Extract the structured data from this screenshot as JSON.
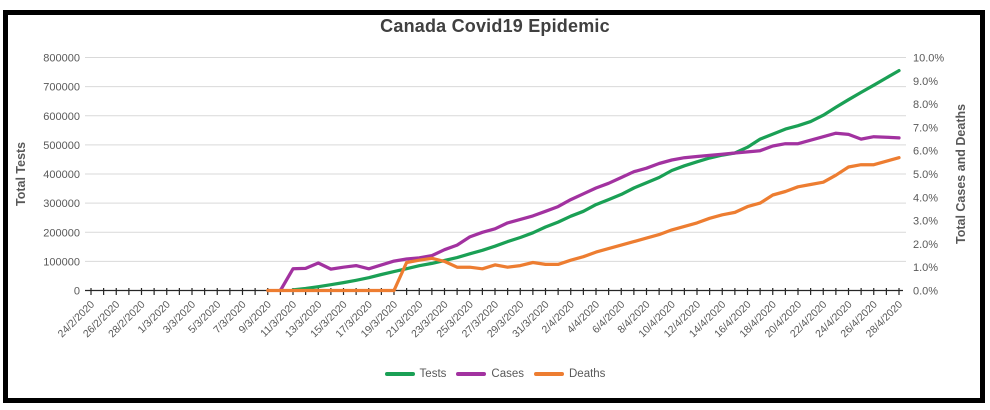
{
  "title": "Canada Covid19 Epidemic",
  "colors": {
    "tests_green": "#1AA055",
    "cases_purple": "#A232A0",
    "deaths_orange": "#ED7D31",
    "gridline": "#D9D9D9",
    "axis_line": "#262626",
    "tick_label": "#595959",
    "title_text": "#404040",
    "frame_border": "#000000"
  },
  "chart_data": {
    "type": "line",
    "title": "Canada Covid19 Epidemic",
    "grid": "horizontal",
    "legend_position": "bottom",
    "x_label_every": 2,
    "dates": [
      "24/2/2020",
      "25/2/2020",
      "26/2/2020",
      "27/2/2020",
      "28/2/2020",
      "29/2/2020",
      "1/3/2020",
      "2/3/2020",
      "3/3/2020",
      "4/3/2020",
      "5/3/2020",
      "6/3/2020",
      "7/3/2020",
      "8/3/2020",
      "9/3/2020",
      "10/3/2020",
      "11/3/2020",
      "12/3/2020",
      "13/3/2020",
      "14/3/2020",
      "15/3/2020",
      "16/3/2020",
      "17/3/2020",
      "18/3/2020",
      "19/3/2020",
      "20/3/2020",
      "21/3/2020",
      "22/3/2020",
      "23/3/2020",
      "24/3/2020",
      "25/3/2020",
      "26/3/2020",
      "27/3/2020",
      "28/3/2020",
      "29/3/2020",
      "30/3/2020",
      "31/3/2020",
      "1/4/2020",
      "2/4/2020",
      "3/4/2020",
      "4/4/2020",
      "5/4/2020",
      "6/4/2020",
      "7/4/2020",
      "8/4/2020",
      "9/4/2020",
      "10/4/2020",
      "11/4/2020",
      "12/4/2020",
      "13/4/2020",
      "14/4/2020",
      "15/4/2020",
      "16/4/2020",
      "17/4/2020",
      "18/4/2020",
      "19/4/2020",
      "20/4/2020",
      "21/4/2020",
      "22/4/2020",
      "23/4/2020",
      "24/4/2020",
      "25/4/2020",
      "26/4/2020",
      "27/4/2020",
      "28/4/2020"
    ],
    "left_axis": {
      "title": "Total Tests",
      "min": 0,
      "max": 800000,
      "tick_step": 100000,
      "tick_labels": [
        "0",
        "100000",
        "200000",
        "300000",
        "400000",
        "500000",
        "600000",
        "700000",
        "800000"
      ]
    },
    "right_axis": {
      "title": "Total Cases and Deaths",
      "min": 0,
      "max": 10,
      "tick_step": 1,
      "tick_labels": [
        "0.0%",
        "1.0%",
        "2.0%",
        "3.0%",
        "4.0%",
        "5.0%",
        "6.0%",
        "7.0%",
        "8.0%",
        "9.0%",
        "10.0%"
      ]
    },
    "series": [
      {
        "name": "Tests",
        "axis": "left",
        "color": "#1AA055",
        "values": [
          null,
          null,
          null,
          null,
          null,
          null,
          null,
          null,
          null,
          null,
          null,
          null,
          null,
          null,
          null,
          null,
          2000,
          7000,
          13000,
          20000,
          27000,
          35000,
          44000,
          55000,
          65000,
          75000,
          85000,
          93000,
          103000,
          113000,
          126000,
          138000,
          152000,
          168000,
          182000,
          198000,
          218000,
          235000,
          255000,
          272000,
          295000,
          312000,
          330000,
          352000,
          370000,
          388000,
          412000,
          428000,
          442000,
          455000,
          465000,
          472000,
          492000,
          520000,
          537000,
          554000,
          566000,
          580000,
          602000,
          629000,
          655000,
          680000,
          705000,
          730000,
          755000
        ]
      },
      {
        "name": "Cases",
        "axis": "right",
        "color": "#A232A0",
        "values": [
          null,
          null,
          null,
          null,
          null,
          null,
          null,
          null,
          null,
          null,
          null,
          null,
          null,
          null,
          null,
          0,
          0.93,
          0.95,
          1.18,
          0.92,
          1.0,
          1.07,
          0.93,
          1.1,
          1.26,
          1.35,
          1.4,
          1.5,
          1.75,
          1.95,
          2.3,
          2.5,
          2.65,
          2.9,
          3.05,
          3.2,
          3.4,
          3.6,
          3.9,
          4.15,
          4.4,
          4.6,
          4.85,
          5.1,
          5.25,
          5.45,
          5.6,
          5.7,
          5.75,
          5.8,
          5.85,
          5.9,
          5.95,
          6.0,
          6.2,
          6.3,
          6.3,
          6.45,
          6.6,
          6.75,
          6.7,
          6.5,
          6.6,
          6.58,
          6.55
        ]
      },
      {
        "name": "Deaths",
        "axis": "right",
        "color": "#ED7D31",
        "values": [
          null,
          null,
          null,
          null,
          null,
          null,
          null,
          null,
          null,
          null,
          null,
          null,
          null,
          null,
          0,
          0,
          0,
          0,
          0,
          0,
          0,
          0,
          0,
          0,
          0,
          1.2,
          1.3,
          1.38,
          1.25,
          1.0,
          1.0,
          0.93,
          1.1,
          1.0,
          1.07,
          1.2,
          1.12,
          1.12,
          1.3,
          1.45,
          1.65,
          1.8,
          1.95,
          2.1,
          2.25,
          2.4,
          2.6,
          2.75,
          2.9,
          3.1,
          3.25,
          3.35,
          3.6,
          3.75,
          4.1,
          4.25,
          4.45,
          4.55,
          4.65,
          4.95,
          5.3,
          5.4,
          5.4,
          5.55,
          5.7
        ]
      }
    ]
  }
}
